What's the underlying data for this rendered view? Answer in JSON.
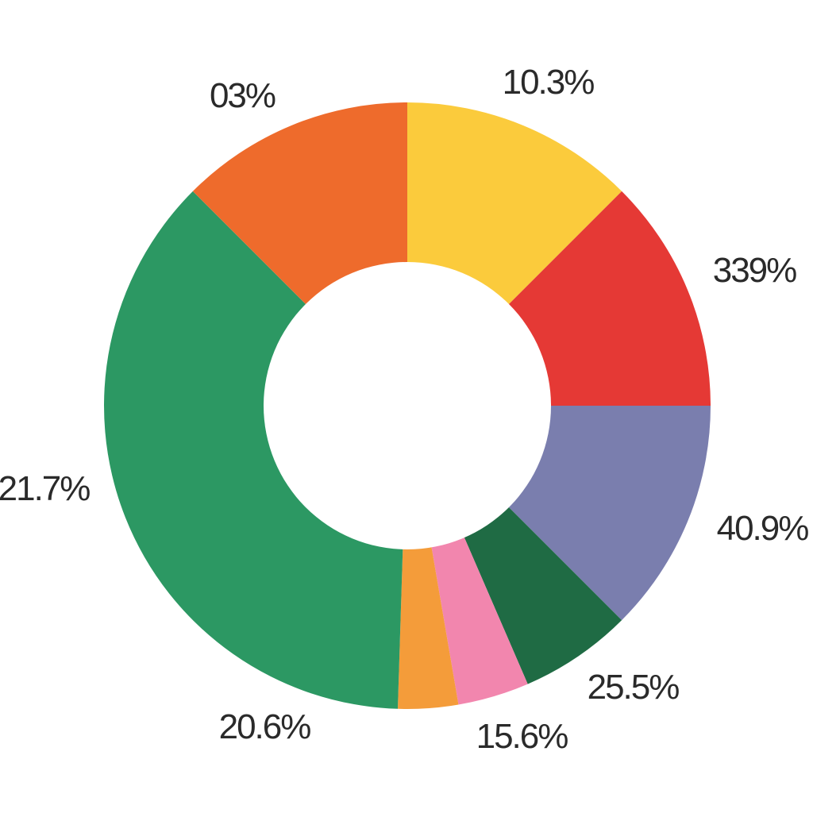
{
  "chart_data": {
    "type": "pie",
    "variant": "donut",
    "start_angle_deg": 0,
    "direction": "clockwise",
    "slices": [
      {
        "value": 12.5,
        "label": "10.3%",
        "color": "#FBCB3C"
      },
      {
        "value": 12.5,
        "label": "339%",
        "color": "#E53935"
      },
      {
        "value": 12.5,
        "label": "40.9%",
        "color": "#7A7EAE"
      },
      {
        "value": 6.0,
        "label": "25.5%",
        "color": "#1F6B44"
      },
      {
        "value": 3.8,
        "label": "15.6%",
        "color": "#F286AE"
      },
      {
        "value": 3.2,
        "label": "",
        "color": "#F49C3A"
      },
      {
        "value": 37.0,
        "label": "20.6%",
        "color": "#2C9863"
      },
      {
        "value": 0.0,
        "label": "21.7%",
        "color": "#2C9863"
      },
      {
        "value": 12.5,
        "label": "03%",
        "color": "#EE6B2C"
      }
    ],
    "title": "",
    "legend": "none"
  }
}
